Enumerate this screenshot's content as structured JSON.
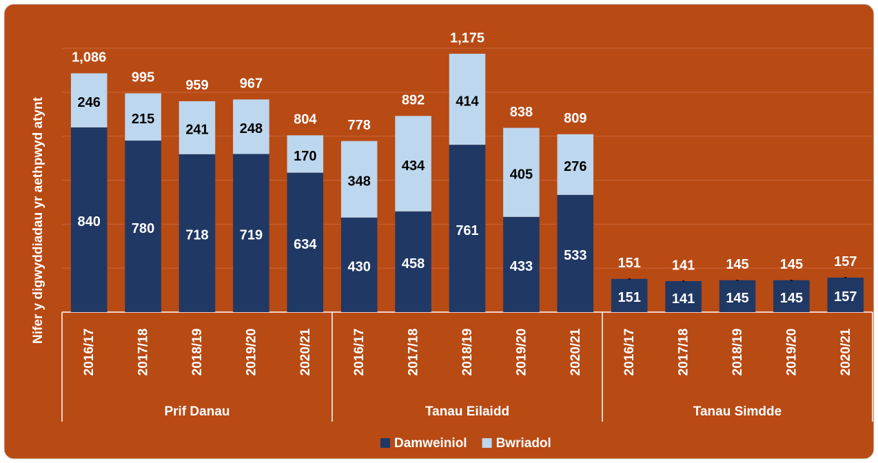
{
  "chart_data": {
    "type": "stacked_bar",
    "y_label": "Nifer y digwyddiadau yr aethpwyd atynt",
    "groups": [
      "Prif Danau",
      "Tanau Eilaidd",
      "Tanau Simdde"
    ],
    "categories": [
      "2016/17",
      "2017/18",
      "2018/19",
      "2019/20",
      "2020/21",
      "2016/17",
      "2017/18",
      "2018/19",
      "2019/20",
      "2020/21",
      "2016/17",
      "2017/18",
      "2018/19",
      "2019/20",
      "2020/21"
    ],
    "series": [
      {
        "name": "Damweiniol",
        "color": "#203864",
        "values": [
          840,
          780,
          718,
          719,
          634,
          430,
          458,
          761,
          433,
          533,
          151,
          141,
          145,
          145,
          157
        ]
      },
      {
        "name": "Bwriadol",
        "color": "#bdd7ee",
        "values": [
          246,
          215,
          241,
          248,
          170,
          348,
          434,
          414,
          405,
          276,
          0,
          0,
          0,
          0,
          0
        ],
        "value_labels": [
          "246",
          "215",
          "241",
          "248",
          "170",
          "348",
          "434",
          "414",
          "405",
          "276",
          "-",
          "-",
          "-",
          "-",
          "-"
        ]
      }
    ],
    "totals": [
      1086,
      995,
      959,
      967,
      804,
      778,
      892,
      1175,
      838,
      809,
      151,
      141,
      145,
      145,
      157
    ],
    "total_labels": [
      "1,086",
      "995",
      "959",
      "967",
      "804",
      "778",
      "892",
      "1,175",
      "838",
      "809",
      "151",
      "141",
      "145",
      "145",
      "157"
    ],
    "ylim": [
      0,
      1200
    ],
    "yticks": [
      0,
      200,
      400,
      600,
      800,
      1000,
      1200
    ],
    "grid": true,
    "legend": "bottom"
  }
}
